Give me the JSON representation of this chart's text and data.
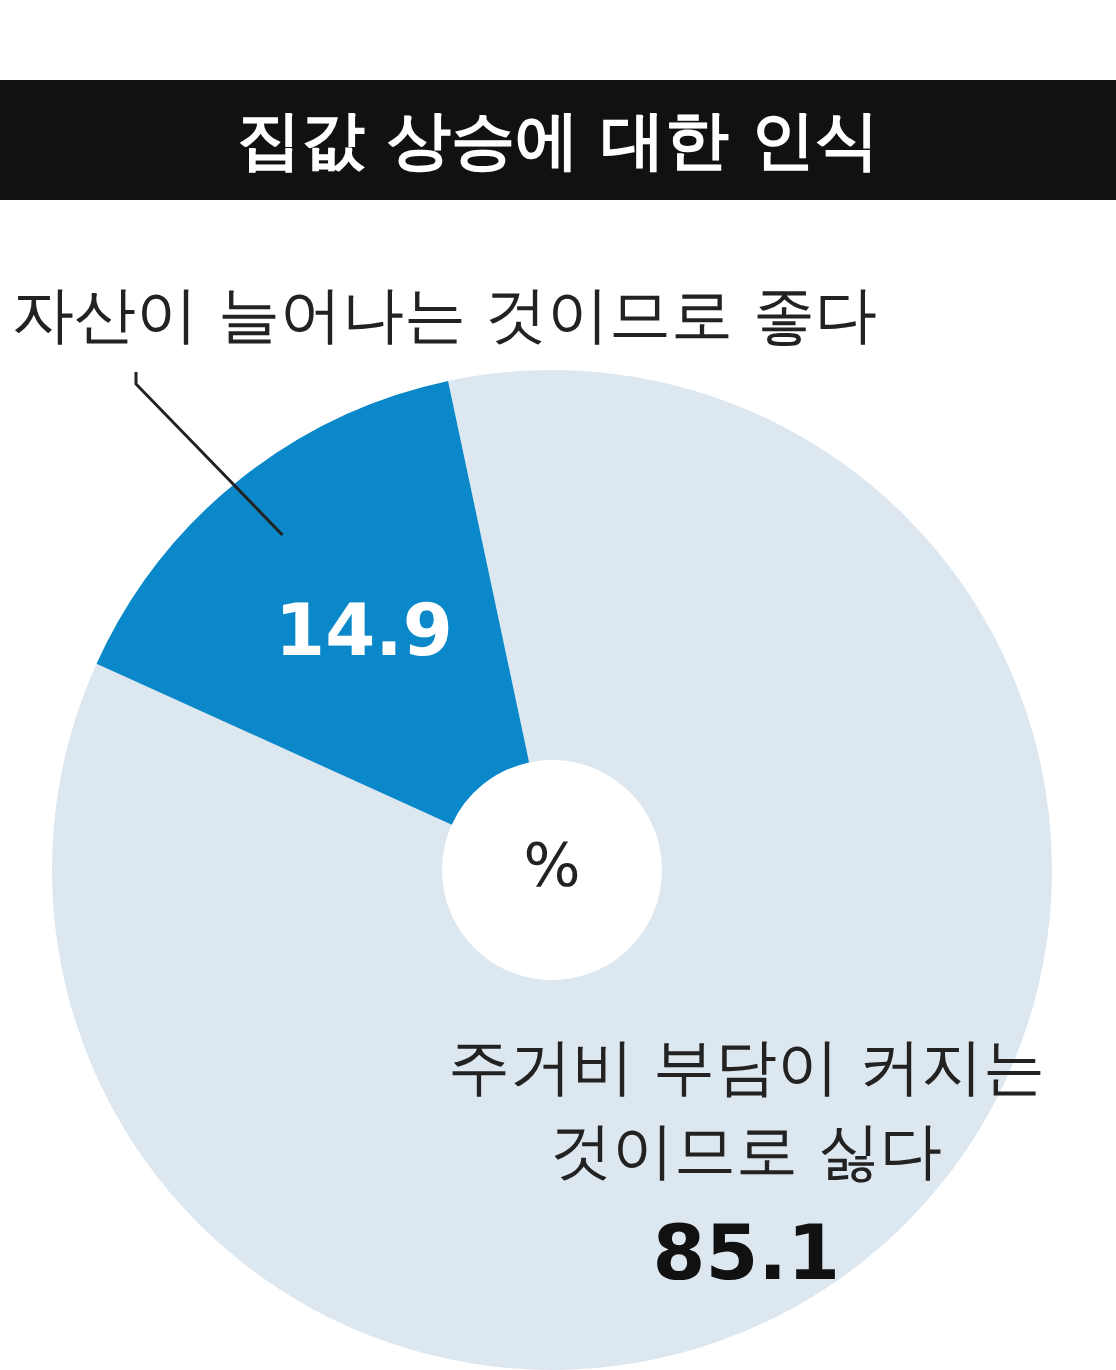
{
  "chart_data": {
    "type": "donut",
    "title": "집값 상승에 대한 인식",
    "categories": [
      "주거비 부담이 커지는 것이므로 싫다",
      "자산이 늘어나는 것이므로 좋다"
    ],
    "values": [
      85.1,
      14.9
    ],
    "colors": [
      "#dde7f0",
      "#0b88c9"
    ],
    "data_labels": true,
    "legend": false,
    "annotations": [
      "%"
    ]
  }
}
